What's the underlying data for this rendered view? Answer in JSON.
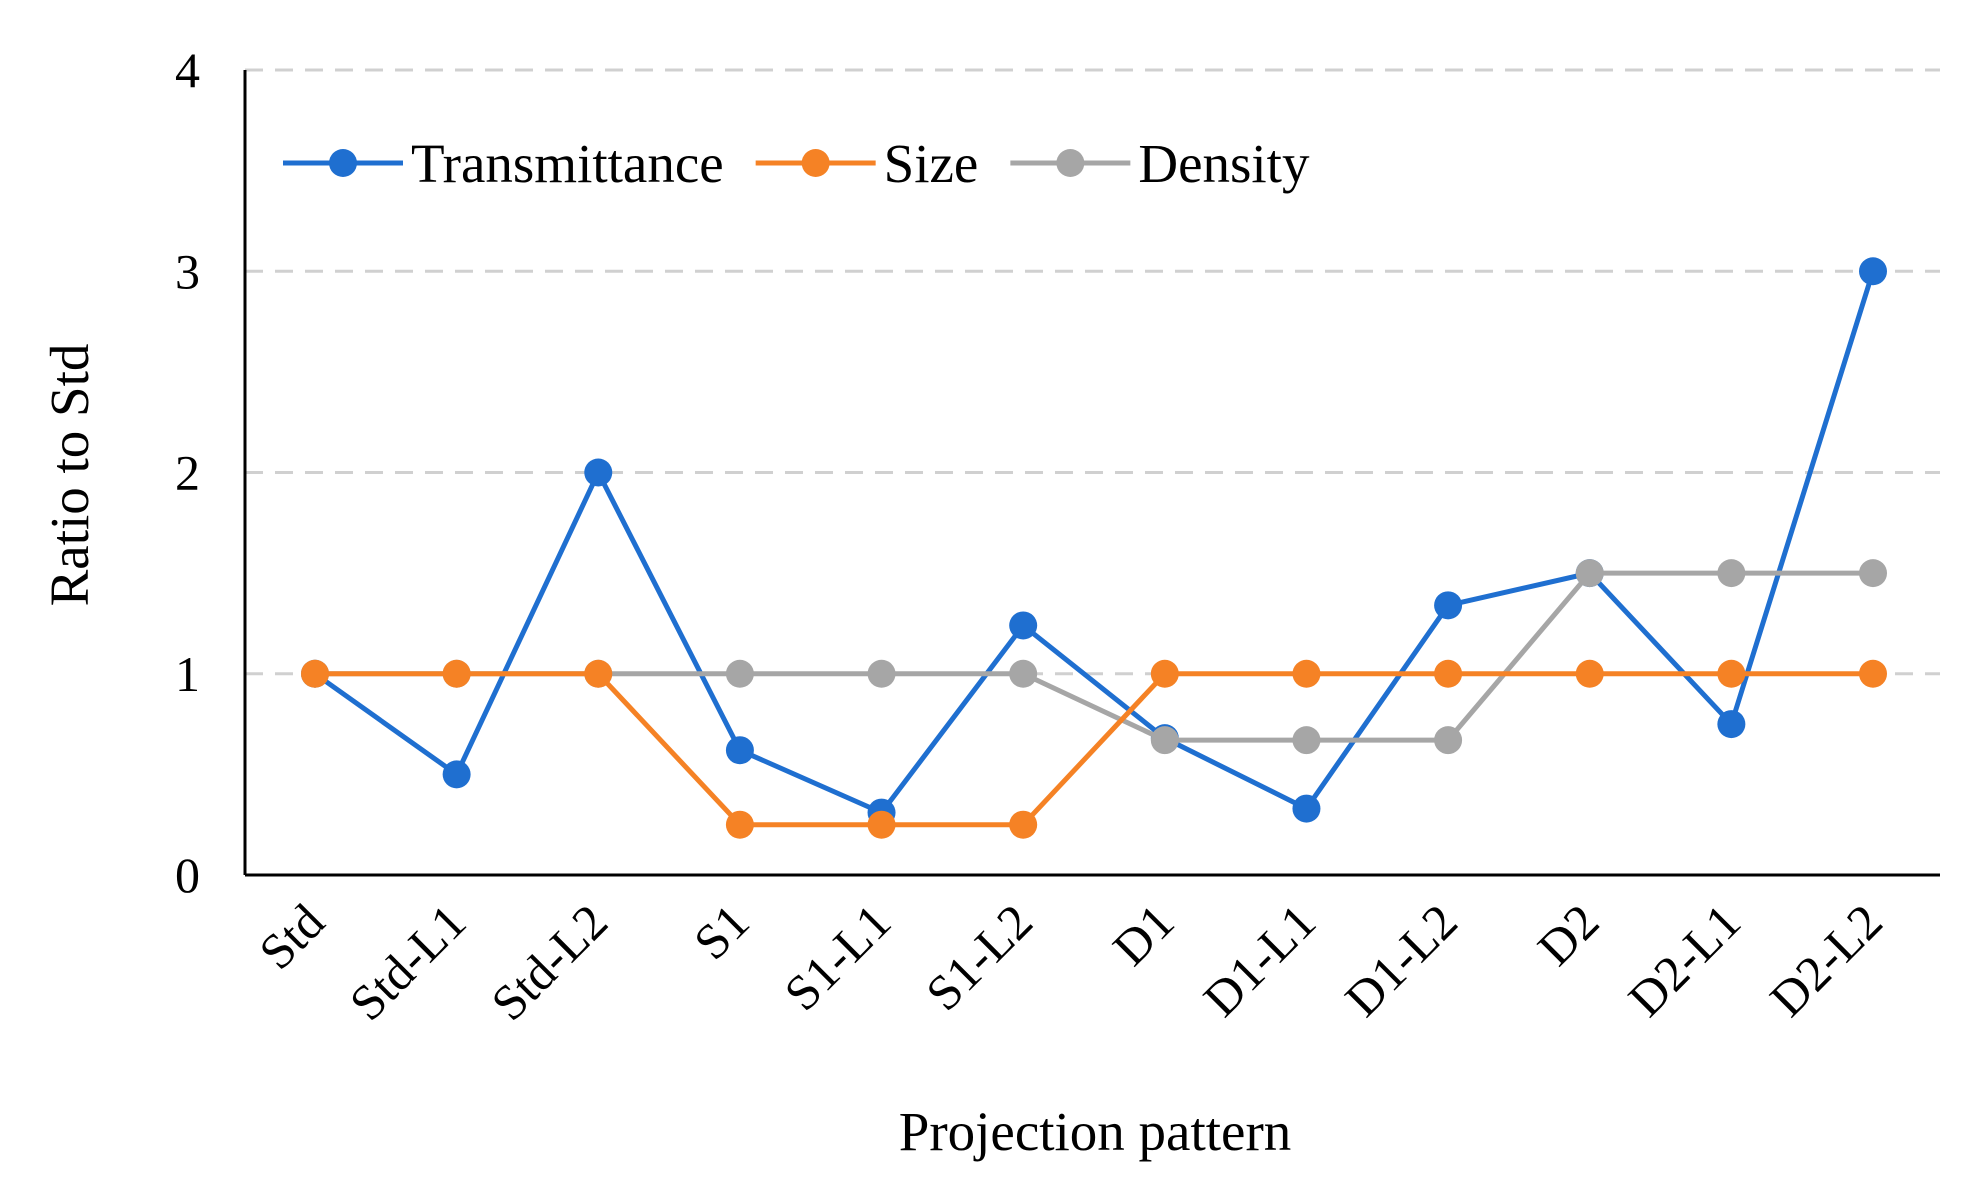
{
  "chart_data": {
    "type": "line",
    "title": "",
    "xlabel": "Projection pattern",
    "ylabel": "Ratio to Std",
    "ylim": [
      0,
      4
    ],
    "yticks": [
      "0",
      "1",
      "2",
      "3",
      "4"
    ],
    "ytick_values": [
      0,
      1,
      2,
      3,
      4
    ],
    "grid": true,
    "legend_position": "top-left",
    "categories": [
      "Std",
      "Std-L1",
      "Std-L2",
      "S1",
      "S1-L1",
      "S1-L2",
      "D1",
      "D1-L1",
      "D1-L2",
      "D2",
      "D2-L1",
      "D2-L2"
    ],
    "series": [
      {
        "name": "Transmittance",
        "color": "#1f6fd0",
        "values": [
          1,
          0.5,
          2,
          0.62,
          0.31,
          1.24,
          0.68,
          0.33,
          1.34,
          1.5,
          0.75,
          3
        ]
      },
      {
        "name": "Size",
        "color": "#f58225",
        "values": [
          1,
          1,
          1,
          0.25,
          0.25,
          0.25,
          1,
          1,
          1,
          1,
          1,
          1
        ]
      },
      {
        "name": "Density",
        "color": "#a6a6a6",
        "values": [
          1,
          1,
          1,
          1,
          1,
          1,
          0.67,
          0.67,
          0.67,
          1.5,
          1.5,
          1.5
        ]
      }
    ],
    "draw_order": [
      0,
      2,
      1
    ]
  }
}
